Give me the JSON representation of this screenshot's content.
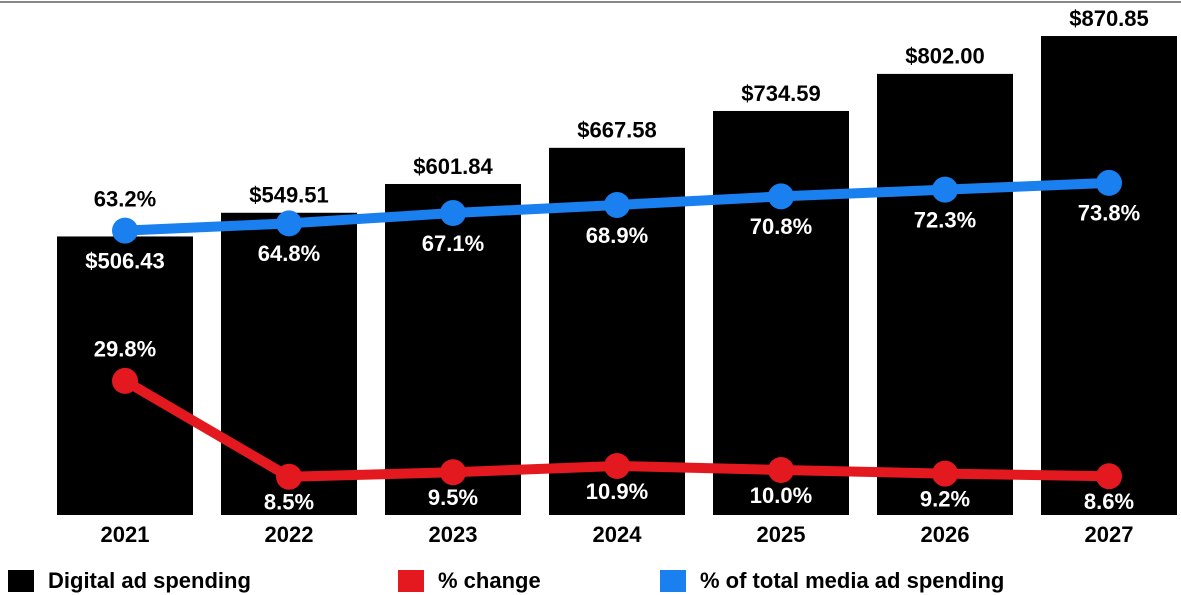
{
  "chart_data": {
    "type": "bar",
    "categories": [
      "2021",
      "2022",
      "2023",
      "2024",
      "2025",
      "2026",
      "2027"
    ],
    "ylim": [
      0,
      900
    ],
    "y2lim": [
      0,
      110
    ],
    "series": [
      {
        "name": "Digital ad spending",
        "type": "bar",
        "color": "#000000",
        "values": [
          506.43,
          549.51,
          601.84,
          667.58,
          734.59,
          802.0,
          870.85
        ],
        "value_labels": [
          "$506.43",
          "$549.51",
          "$601.84",
          "$667.58",
          "$734.59",
          "$802.00",
          "$870.85"
        ]
      },
      {
        "name": "% change",
        "type": "line",
        "axis": "y2",
        "color": "#e3191f",
        "values": [
          29.8,
          8.5,
          9.5,
          10.9,
          10.0,
          9.2,
          8.6
        ],
        "value_labels": [
          "29.8%",
          "8.5%",
          "9.5%",
          "10.9%",
          "10.0%",
          "9.2%",
          "8.6%"
        ]
      },
      {
        "name": "% of total media ad spending",
        "type": "line",
        "axis": "y2",
        "color": "#1a7fef",
        "values": [
          63.2,
          64.8,
          67.1,
          68.9,
          70.8,
          72.3,
          73.8
        ],
        "value_labels": [
          "63.2%",
          "64.8%",
          "67.1%",
          "68.9%",
          "70.8%",
          "72.3%",
          "73.8%"
        ]
      }
    ]
  }
}
